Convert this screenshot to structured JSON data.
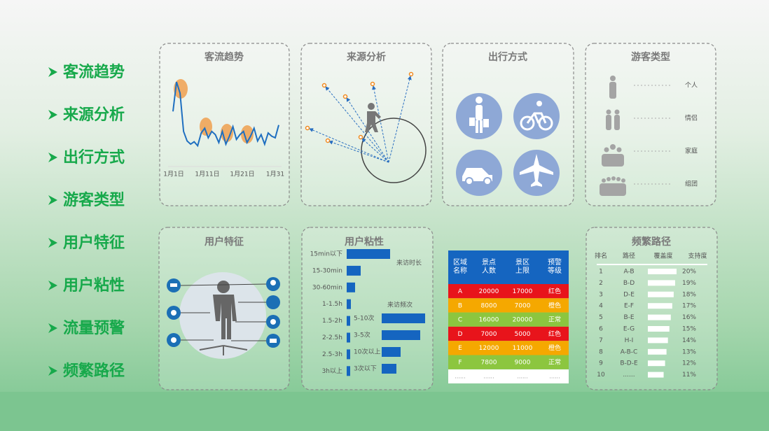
{
  "menu": [
    "客流趋势",
    "来源分析",
    "出行方式",
    "游客类型",
    "用户特征",
    "用户粘性",
    "流量预警",
    "频繁路径"
  ],
  "traffic_trend": {
    "title": "客流趋势",
    "x_labels": [
      "1月1日",
      "1月11日",
      "1月21日",
      "1月31"
    ],
    "values": [
      55,
      92,
      78,
      30,
      18,
      14,
      17,
      12,
      28,
      34,
      22,
      30,
      26,
      16,
      30,
      14,
      24,
      36,
      20,
      26,
      30,
      16,
      24,
      34,
      18,
      26,
      14,
      28,
      24,
      22,
      38
    ],
    "ylim": [
      0,
      100
    ],
    "color": "#1f6fc0"
  },
  "source_analysis": {
    "title": "来源分析"
  },
  "travel_mode": {
    "title": "出行方式"
  },
  "visitor_types": {
    "title": "游客类型",
    "labels": [
      "个人",
      "情侣",
      "家庭",
      "组团"
    ]
  },
  "user_features": {
    "title": "用户特征"
  },
  "user_stickiness": {
    "title": "用户粘性",
    "xlim": [
      0,
      100
    ],
    "color": "#1565c0",
    "duration": {
      "name": "来访时长",
      "categories": [
        "15min以下",
        "15-30min",
        "30-60min",
        "1-1.5h",
        "1.5-2h",
        "2-2.5h",
        "2.5-3h",
        "3h以上"
      ],
      "values": [
        62,
        20,
        12,
        6,
        5,
        5,
        5,
        5
      ]
    },
    "frequency": {
      "name": "来访频次",
      "categories": [
        "5-10次",
        "3-5次",
        "10次以上",
        "3次以下"
      ],
      "values": [
        62,
        55,
        27,
        21
      ]
    }
  },
  "warning_table": {
    "header": [
      [
        "区域",
        "名称"
      ],
      [
        "景点",
        "人数"
      ],
      [
        "景区",
        "上限"
      ],
      [
        "预警",
        "等级"
      ]
    ],
    "rows": [
      [
        "A",
        "20000",
        "17000",
        "红色"
      ],
      [
        "B",
        "8000",
        "7000",
        "橙色"
      ],
      [
        "C",
        "16000",
        "20000",
        "正常"
      ],
      [
        "D",
        "7000",
        "5000",
        "红色"
      ],
      [
        "E",
        "12000",
        "11000",
        "橙色"
      ],
      [
        "F",
        "7800",
        "9000",
        "正常"
      ]
    ],
    "row_colors": [
      "#e8141b",
      "#f5a800",
      "#8cc63f",
      "#e8141b",
      "#f5a800",
      "#8cc63f"
    ],
    "footer": [
      "......",
      "......",
      "......",
      "......"
    ]
  },
  "frequent_paths": {
    "title": "频繁路径",
    "header": [
      "排名",
      "路径",
      "覆盖度",
      "支持度"
    ],
    "ranks": [
      1,
      2,
      3,
      4,
      5,
      6,
      7,
      8,
      9,
      10
    ],
    "paths": [
      "A-B",
      "B-D",
      "D-E",
      "E-F",
      "B-E",
      "E-G",
      "H-I",
      "A-B-C",
      "B-D-E",
      "......"
    ],
    "support_values": [
      20,
      19,
      18,
      17,
      16,
      15,
      14,
      13,
      12,
      11
    ],
    "support_labels": [
      "20%",
      "19%",
      "18%",
      "17%",
      "16%",
      "15%",
      "14%",
      "13%",
      "12%",
      "11%"
    ]
  }
}
